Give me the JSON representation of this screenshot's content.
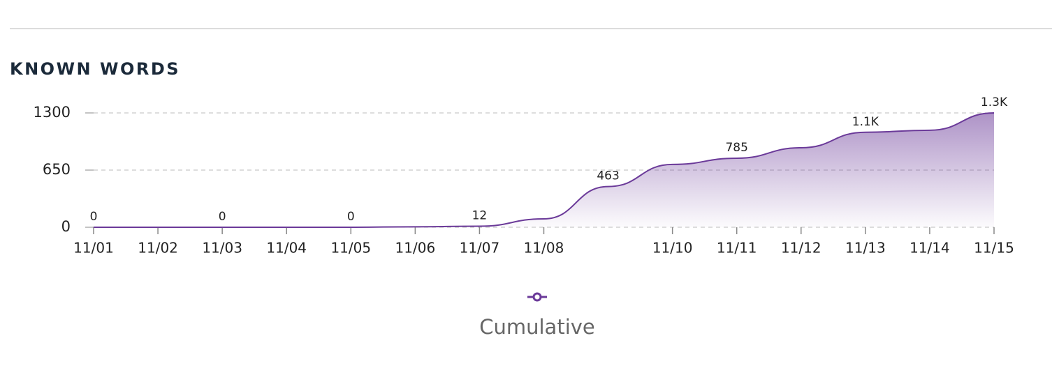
{
  "chart_data": {
    "type": "area",
    "title": "KNOWN WORDS",
    "categories": [
      "11/01",
      "11/02",
      "11/03",
      "11/04",
      "11/05",
      "11/06",
      "11/07",
      "11/08",
      null,
      "11/10",
      "11/11",
      "11/12",
      "11/13",
      "11/14",
      "11/15"
    ],
    "series": [
      {
        "name": "Cumulative",
        "color": "#6b3a99",
        "values": [
          0,
          0,
          0,
          0,
          0,
          5,
          12,
          95,
          463,
          714,
          785,
          904,
          1080,
          1103,
          1300
        ],
        "value_labels": [
          "0",
          null,
          "0",
          null,
          "0",
          null,
          "12",
          null,
          "463",
          null,
          "785",
          null,
          "1.1K",
          null,
          "1.3K"
        ]
      }
    ],
    "ylim": [
      0,
      1300
    ],
    "yticks": [
      0,
      650,
      1300
    ],
    "grid": true
  }
}
